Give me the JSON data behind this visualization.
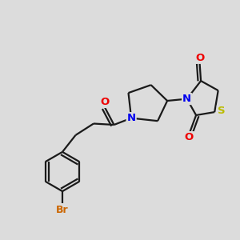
{
  "bg_color": "#dcdcdc",
  "bond_color": "#1a1a1a",
  "atom_colors": {
    "N": "#0000ee",
    "O": "#ee0000",
    "S": "#bbbb00",
    "Br": "#cc6600",
    "C": "#1a1a1a"
  },
  "lw": 1.6,
  "font_size": 9.5
}
